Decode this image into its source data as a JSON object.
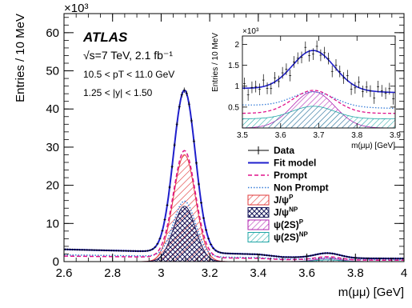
{
  "chart_data": {
    "type": "line",
    "xlabel": "m(μμ) [GeV]",
    "ylabel": "Entries / 10 MeV",
    "y_multiplier": "×10³",
    "xlim": [
      2.6,
      4.0
    ],
    "ylim": [
      0,
      65
    ],
    "x_ticks": [
      "2.6",
      "2.8",
      "3",
      "3.2",
      "3.4",
      "3.6",
      "3.8",
      "4"
    ],
    "y_ticks": [
      "0",
      "10",
      "20",
      "30",
      "40",
      "50",
      "60"
    ],
    "experiment": "ATLAS",
    "energy_label": "√s=7 TeV, 2.1 fb⁻¹",
    "pt_range": "10.5 < pT < 11.0 GeV",
    "y_range": "1.25 < |y| < 1.50",
    "jpsi": {
      "mass": 3.096,
      "sigma": 0.045
    },
    "psi2s": {
      "mass": 3.686,
      "sigma": 0.052
    },
    "fit_model_peak": 43.0,
    "prompt_jpsi_peak": 28.0,
    "nonprompt_jpsi_peak": 14.5,
    "prompt_psi2s_peak": 0.85,
    "nonprompt_psi2s_peak": 0.45,
    "background": [
      {
        "x": 2.6,
        "y": 3.2
      },
      {
        "x": 3.0,
        "y": 2.6
      },
      {
        "x": 3.4,
        "y": 1.9
      },
      {
        "x": 3.5,
        "y": 1.2
      },
      {
        "x": 3.7,
        "y": 0.9
      },
      {
        "x": 4.0,
        "y": 0.8
      }
    ],
    "series": [
      {
        "name": "Data",
        "color": "#000000",
        "style": "points-with-errors"
      },
      {
        "name": "Fit model",
        "color": "#1f1fcc",
        "style": "solid"
      },
      {
        "name": "Prompt",
        "color": "#e0138c",
        "style": "dashed"
      },
      {
        "name": "Non Prompt",
        "color": "#3a7fd9",
        "style": "dotted"
      },
      {
        "name": "J/ψ^P",
        "color": "#e23b3b",
        "style": "hatch-right"
      },
      {
        "name": "J/ψ^NP",
        "color": "#1a1a5c",
        "style": "crosshatch"
      },
      {
        "name": "ψ(2S)^P",
        "color": "#b225b2",
        "style": "hatch-right"
      },
      {
        "name": "ψ(2S)^NP",
        "color": "#1fa6a6",
        "style": "hatch-right"
      }
    ],
    "legend": [
      {
        "label": "Data",
        "sup": ""
      },
      {
        "label": "Fit model",
        "sup": ""
      },
      {
        "label": "Prompt",
        "sup": ""
      },
      {
        "label": "Non Prompt",
        "sup": ""
      },
      {
        "label": "J/ψ",
        "sup": "P"
      },
      {
        "label": "J/ψ",
        "sup": "NP"
      },
      {
        "label": "ψ(2S)",
        "sup": "P"
      },
      {
        "label": "ψ(2S)",
        "sup": "NP"
      }
    ],
    "legend_position": "right",
    "inset": {
      "xlabel": "m(μμ) [GeV]",
      "ylabel": "Entries / 10 MeV",
      "y_multiplier": "×10³",
      "xlim": [
        3.5,
        3.9
      ],
      "ylim": [
        0,
        2.2
      ],
      "x_ticks": [
        "3.5",
        "3.6",
        "3.7",
        "3.8",
        "3.9"
      ],
      "y_ticks": [
        "0.5",
        "1",
        "1.5",
        "2"
      ],
      "fit_peak": 1.85,
      "background_level": 0.95,
      "prompt_peak": 0.55,
      "nonprompt_peak": 0.35
    }
  }
}
